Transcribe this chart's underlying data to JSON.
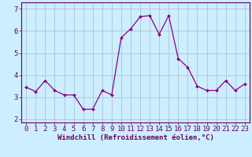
{
  "x": [
    0,
    1,
    2,
    3,
    4,
    5,
    6,
    7,
    8,
    9,
    10,
    11,
    12,
    13,
    14,
    15,
    16,
    17,
    18,
    19,
    20,
    21,
    22,
    23
  ],
  "y": [
    3.45,
    3.25,
    3.75,
    3.3,
    3.1,
    3.1,
    2.45,
    2.45,
    3.3,
    3.1,
    5.7,
    6.1,
    6.65,
    6.7,
    5.85,
    6.7,
    4.75,
    4.35,
    3.5,
    3.3,
    3.3,
    3.75,
    3.3,
    3.6
  ],
  "line_color": "#880088",
  "marker": "D",
  "marker_size": 2.0,
  "line_width": 0.9,
  "bg_color": "#cceeff",
  "grid_color": "#aabbcc",
  "xlabel": "Windchill (Refroidissement éolien,°C)",
  "ylabel_ticks": [
    2,
    3,
    4,
    5,
    6,
    7
  ],
  "xlim": [
    -0.5,
    23.5
  ],
  "ylim": [
    1.85,
    7.3
  ],
  "xlabel_fontsize": 6.5,
  "tick_fontsize": 6.5,
  "axis_color": "#660066"
}
